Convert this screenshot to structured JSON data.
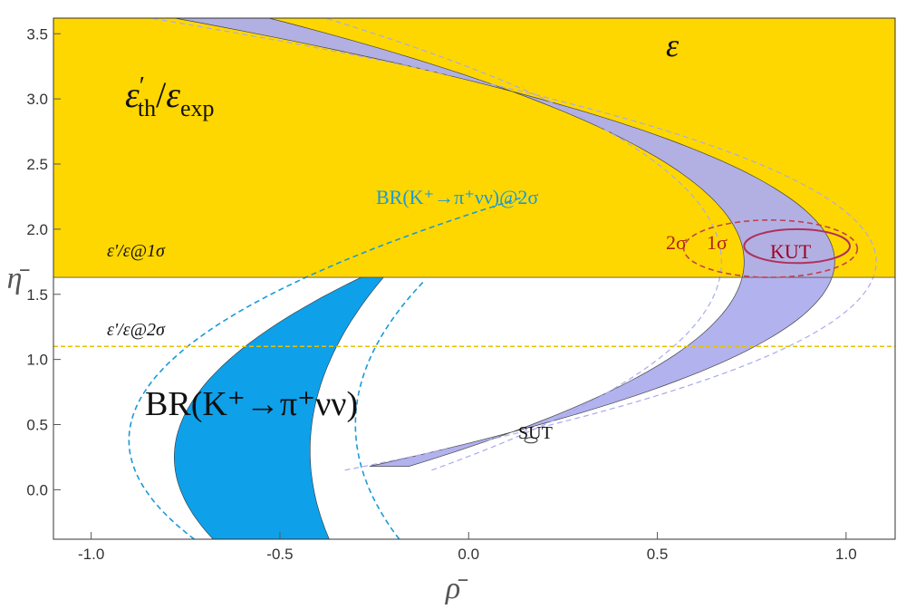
{
  "chart_data": {
    "type": "area",
    "xlabel": "ρ̄",
    "ylabel": "η̄",
    "xlim": [
      -1.1,
      1.13
    ],
    "ylim": [
      -0.38,
      3.62
    ],
    "x_ticks": [
      "-1.0",
      "-0.5",
      "0.0",
      "0.5",
      "1.0"
    ],
    "y_ticks": [
      "0.0",
      "0.5",
      "1.0",
      "1.5",
      "2.0",
      "2.5",
      "3.0",
      "3.5"
    ],
    "grid": false,
    "colors": {
      "epsilon_prime_region": "#FFD700",
      "kaon_decay_band": "#0FA0EA",
      "epsilon_band": "#AEAEEE",
      "kut_ellipse": "#B03060",
      "kut_text": "#A00020",
      "eprime_2sigma_line": "#E8C000",
      "br_2sigma_contour": "#1A9AD8"
    },
    "regions": {
      "epsilon_prime_1sigma_lower_eta": 1.63,
      "epsilon_prime_2sigma_eta": 1.1
    },
    "kut": {
      "center_rho": 0.87,
      "center_eta": 1.87,
      "semi_rho": 0.14,
      "semi_eta": 0.13
    },
    "kut_2sigma": {
      "center_rho": 0.8,
      "center_eta": 1.85,
      "semi_rho": 0.23,
      "semi_eta": 0.22
    },
    "sut": {
      "center_rho": 0.165,
      "center_eta": 0.38
    },
    "annotations": {
      "eps_ratio_main": "ε'th/εexp",
      "eps_ratio_base": "ε",
      "eps_ratio_prime": "′",
      "eps_ratio_sub": "th",
      "eps_ratio_slash": "/",
      "eps_ratio_den": "ε",
      "eps_ratio_den_sub": "exp",
      "epsilon_label": "ε",
      "br_small": "BR(K⁺→π⁺νν)@2σ",
      "br_large": "BR(K⁺→π⁺νν)",
      "eps_1sigma": "ε'/ε@1σ",
      "eps_2sigma": "ε'/ε@2σ",
      "kut": "KUT",
      "sut": "SUT",
      "two_sigma": "2σ",
      "one_sigma": "1σ"
    }
  }
}
